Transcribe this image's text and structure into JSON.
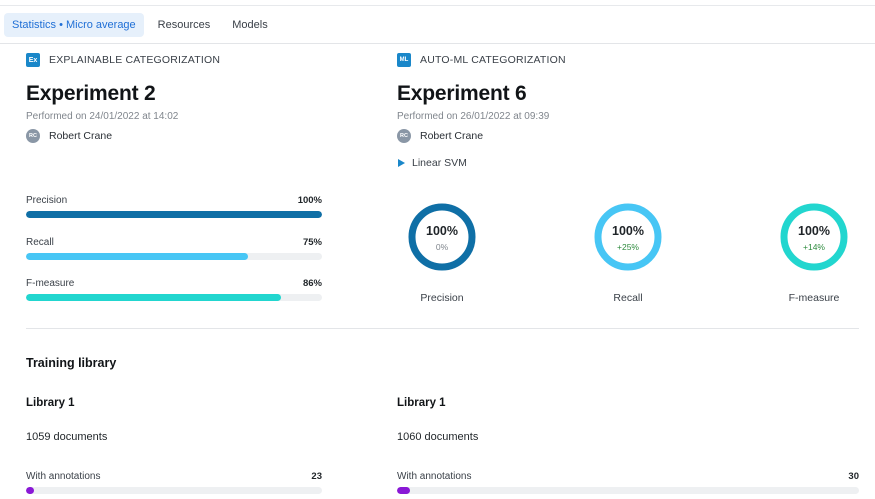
{
  "tabs": [
    {
      "label": "Statistics • Micro average",
      "active": true
    },
    {
      "label": "Resources",
      "active": false
    },
    {
      "label": "Models",
      "active": false
    }
  ],
  "left": {
    "category_badge": "Ex",
    "category_label": "EXPLAINABLE CATEGORIZATION",
    "title": "Experiment 2",
    "performed": "Performed on 24/01/2022 at 14:02",
    "user_initials": "RC",
    "user_name": "Robert Crane",
    "metrics": [
      {
        "label": "Precision",
        "value": "100%",
        "fraction": 1.0,
        "color": "#0f6fa6"
      },
      {
        "label": "Recall",
        "value": "75%",
        "fraction": 0.75,
        "color": "#47c6f5"
      },
      {
        "label": "F-measure",
        "value": "86%",
        "fraction": 0.86,
        "color": "#22d6cf"
      }
    ]
  },
  "right": {
    "category_badge": "ML",
    "category_label": "AUTO-ML CATEGORIZATION",
    "title": "Experiment 6",
    "performed": "Performed on 26/01/2022 at 09:39",
    "user_initials": "RC",
    "user_name": "Robert Crane",
    "algorithm": "Linear SVM",
    "donuts": [
      {
        "label": "Precision",
        "value": "100%",
        "delta": "0%",
        "fraction": 1.0,
        "color": "#0f6fa6",
        "delta_color": "#80868d"
      },
      {
        "label": "Recall",
        "value": "100%",
        "delta": "+25%",
        "fraction": 1.0,
        "color": "#47c6f5",
        "delta_color": "#2e8b3e"
      },
      {
        "label": "F-measure",
        "value": "100%",
        "delta": "+14%",
        "fraction": 1.0,
        "color": "#22d6cf",
        "delta_color": "#2e8b3e"
      }
    ]
  },
  "training": {
    "title": "Training library",
    "libraries": [
      {
        "name": "Library 1",
        "documents": "1059 documents",
        "annotations_label": "With annotations",
        "annotations_value": "23",
        "fraction": 0.022
      },
      {
        "name": "Library 1",
        "documents": "1060 documents",
        "annotations_label": "With annotations",
        "annotations_value": "30",
        "fraction": 0.028
      }
    ]
  },
  "colors": {
    "accent": "#1a87c9",
    "annotation": "#8a18d6"
  }
}
